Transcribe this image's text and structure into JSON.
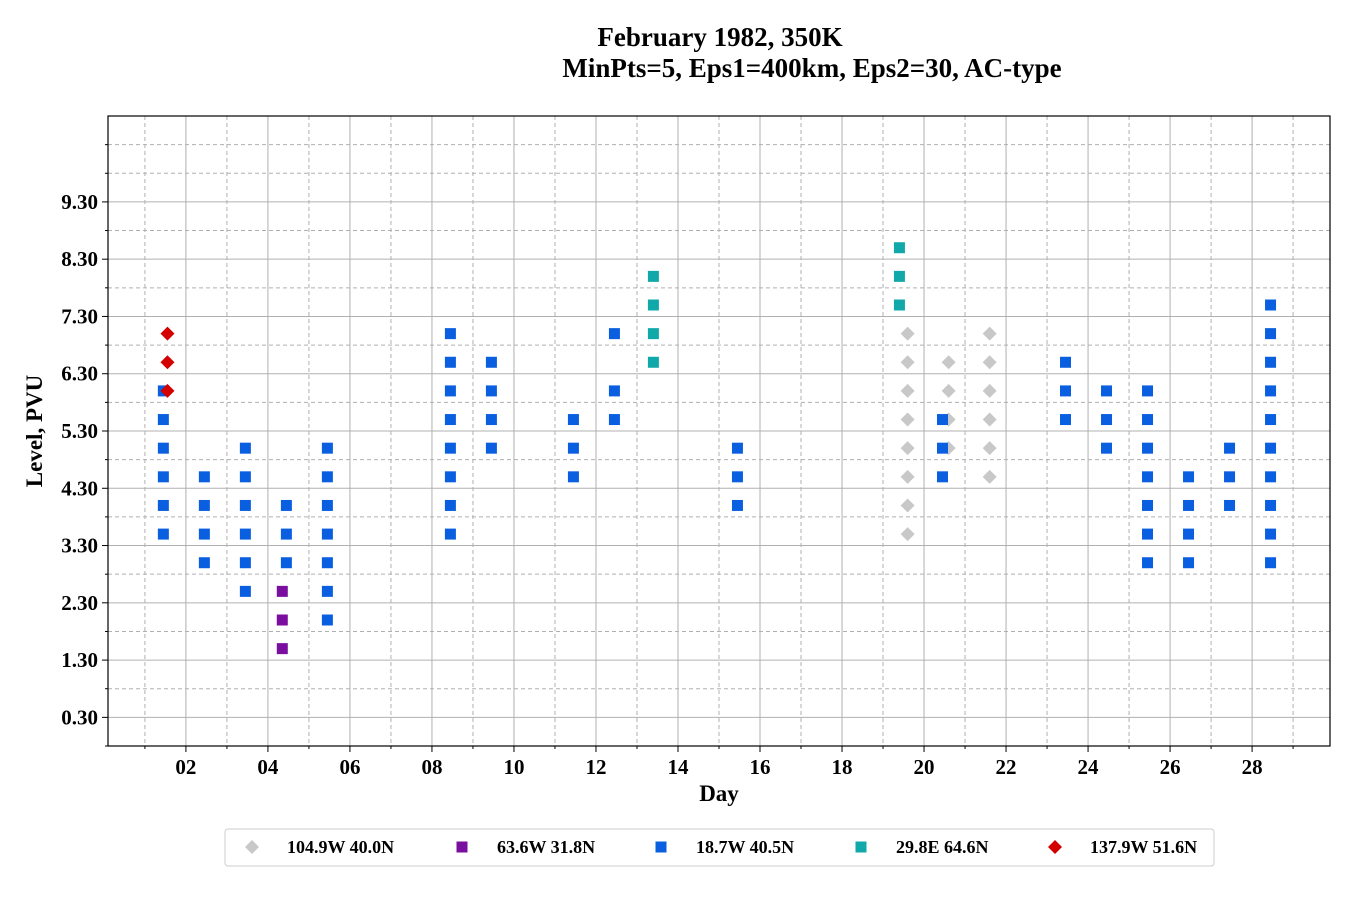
{
  "chart_data": {
    "type": "scatter",
    "title": "February 1982, 350K",
    "subtitle": "MinPts=5, Eps1=400km, Eps2=30, AC-type",
    "xlabel": "Day",
    "ylabel": "Level, PVU",
    "xlim": [
      0.1,
      29.9
    ],
    "ylim": [
      -0.2,
      10.8
    ],
    "x_ticks": [
      {
        "value": 2,
        "label": "02"
      },
      {
        "value": 4,
        "label": "04"
      },
      {
        "value": 6,
        "label": "06"
      },
      {
        "value": 8,
        "label": "08"
      },
      {
        "value": 10,
        "label": "10"
      },
      {
        "value": 12,
        "label": "12"
      },
      {
        "value": 14,
        "label": "14"
      },
      {
        "value": 16,
        "label": "16"
      },
      {
        "value": 18,
        "label": "18"
      },
      {
        "value": 20,
        "label": "20"
      },
      {
        "value": 22,
        "label": "22"
      },
      {
        "value": 24,
        "label": "24"
      },
      {
        "value": 26,
        "label": "26"
      },
      {
        "value": 28,
        "label": "28"
      }
    ],
    "x_minor_ticks": [
      1,
      3,
      5,
      7,
      9,
      11,
      13,
      15,
      17,
      19,
      21,
      23,
      25,
      27,
      29
    ],
    "y_ticks": [
      {
        "value": 0.3,
        "label": "0.30"
      },
      {
        "value": 1.3,
        "label": "1.30"
      },
      {
        "value": 2.3,
        "label": "2.30"
      },
      {
        "value": 3.3,
        "label": "3.30"
      },
      {
        "value": 4.3,
        "label": "4.30"
      },
      {
        "value": 5.3,
        "label": "5.30"
      },
      {
        "value": 6.3,
        "label": "6.30"
      },
      {
        "value": 7.3,
        "label": "7.30"
      },
      {
        "value": 8.3,
        "label": "8.30"
      },
      {
        "value": 9.3,
        "label": "9.30"
      }
    ],
    "y_minor_ticks": [
      -0.2,
      0.8,
      1.8,
      2.8,
      3.8,
      4.8,
      5.8,
      6.8,
      7.8,
      8.8,
      9.8,
      10.3
    ],
    "grid": true,
    "legend_position": "bottom-center",
    "series": [
      {
        "name": "104.9W 40.0N",
        "marker": "diamond",
        "color": "#c8c8c8",
        "points": [
          [
            19.6,
            3.5
          ],
          [
            19.6,
            4.0
          ],
          [
            19.6,
            4.5
          ],
          [
            19.6,
            5.0
          ],
          [
            19.6,
            5.5
          ],
          [
            19.6,
            6.0
          ],
          [
            19.6,
            6.5
          ],
          [
            19.6,
            7.0
          ],
          [
            20.6,
            5.0
          ],
          [
            20.6,
            5.5
          ],
          [
            20.6,
            6.0
          ],
          [
            20.6,
            6.5
          ],
          [
            21.6,
            4.5
          ],
          [
            21.6,
            5.0
          ],
          [
            21.6,
            5.5
          ],
          [
            21.6,
            6.0
          ],
          [
            21.6,
            6.5
          ],
          [
            21.6,
            7.0
          ]
        ]
      },
      {
        "name": "63.6W 31.8N",
        "marker": "square",
        "color": "#7a0e9e",
        "points": [
          [
            4.35,
            1.5
          ],
          [
            4.35,
            2.0
          ],
          [
            4.35,
            2.5
          ]
        ]
      },
      {
        "name": "18.7W 40.5N",
        "marker": "square",
        "color": "#0a5fe0",
        "points": [
          [
            1.45,
            3.5
          ],
          [
            1.45,
            4.0
          ],
          [
            1.45,
            4.5
          ],
          [
            1.45,
            5.0
          ],
          [
            1.45,
            5.5
          ],
          [
            1.45,
            6.0
          ],
          [
            2.45,
            3.0
          ],
          [
            2.45,
            3.5
          ],
          [
            2.45,
            4.0
          ],
          [
            2.45,
            4.5
          ],
          [
            3.45,
            2.5
          ],
          [
            3.45,
            3.0
          ],
          [
            3.45,
            3.5
          ],
          [
            3.45,
            4.0
          ],
          [
            3.45,
            4.5
          ],
          [
            3.45,
            5.0
          ],
          [
            4.45,
            3.0
          ],
          [
            4.45,
            3.5
          ],
          [
            4.45,
            4.0
          ],
          [
            5.45,
            2.0
          ],
          [
            5.45,
            2.5
          ],
          [
            5.45,
            3.0
          ],
          [
            5.45,
            3.5
          ],
          [
            5.45,
            4.0
          ],
          [
            5.45,
            4.5
          ],
          [
            5.45,
            5.0
          ],
          [
            8.45,
            3.5
          ],
          [
            8.45,
            4.0
          ],
          [
            8.45,
            4.5
          ],
          [
            8.45,
            5.0
          ],
          [
            8.45,
            5.5
          ],
          [
            8.45,
            6.0
          ],
          [
            8.45,
            6.5
          ],
          [
            8.45,
            7.0
          ],
          [
            9.45,
            5.0
          ],
          [
            9.45,
            5.5
          ],
          [
            9.45,
            6.0
          ],
          [
            9.45,
            6.5
          ],
          [
            11.45,
            4.5
          ],
          [
            11.45,
            5.0
          ],
          [
            11.45,
            5.5
          ],
          [
            12.45,
            5.5
          ],
          [
            12.45,
            6.0
          ],
          [
            12.45,
            7.0
          ],
          [
            15.45,
            4.0
          ],
          [
            15.45,
            4.5
          ],
          [
            15.45,
            5.0
          ],
          [
            20.45,
            4.5
          ],
          [
            20.45,
            5.0
          ],
          [
            20.45,
            5.5
          ],
          [
            23.45,
            5.5
          ],
          [
            23.45,
            6.0
          ],
          [
            23.45,
            6.5
          ],
          [
            24.45,
            5.0
          ],
          [
            24.45,
            5.5
          ],
          [
            24.45,
            6.0
          ],
          [
            25.45,
            3.0
          ],
          [
            25.45,
            3.5
          ],
          [
            25.45,
            4.0
          ],
          [
            25.45,
            4.5
          ],
          [
            25.45,
            5.0
          ],
          [
            25.45,
            5.5
          ],
          [
            25.45,
            6.0
          ],
          [
            26.45,
            3.0
          ],
          [
            26.45,
            3.5
          ],
          [
            26.45,
            4.0
          ],
          [
            26.45,
            4.5
          ],
          [
            27.45,
            4.0
          ],
          [
            27.45,
            4.5
          ],
          [
            27.45,
            5.0
          ],
          [
            28.45,
            3.0
          ],
          [
            28.45,
            3.5
          ],
          [
            28.45,
            4.0
          ],
          [
            28.45,
            4.5
          ],
          [
            28.45,
            5.0
          ],
          [
            28.45,
            5.5
          ],
          [
            28.45,
            6.0
          ],
          [
            28.45,
            6.5
          ],
          [
            28.45,
            7.0
          ],
          [
            28.45,
            7.5
          ]
        ]
      },
      {
        "name": "29.8E 64.6N",
        "marker": "square",
        "color": "#10a8a8",
        "points": [
          [
            13.4,
            6.5
          ],
          [
            13.4,
            7.0
          ],
          [
            13.4,
            7.5
          ],
          [
            13.4,
            8.0
          ],
          [
            19.4,
            7.5
          ],
          [
            19.4,
            8.0
          ],
          [
            19.4,
            8.5
          ]
        ]
      },
      {
        "name": "137.9W 51.6N",
        "marker": "diamond",
        "color": "#d40000",
        "points": [
          [
            1.55,
            6.0
          ],
          [
            1.55,
            6.5
          ],
          [
            1.55,
            7.0
          ]
        ]
      }
    ]
  }
}
